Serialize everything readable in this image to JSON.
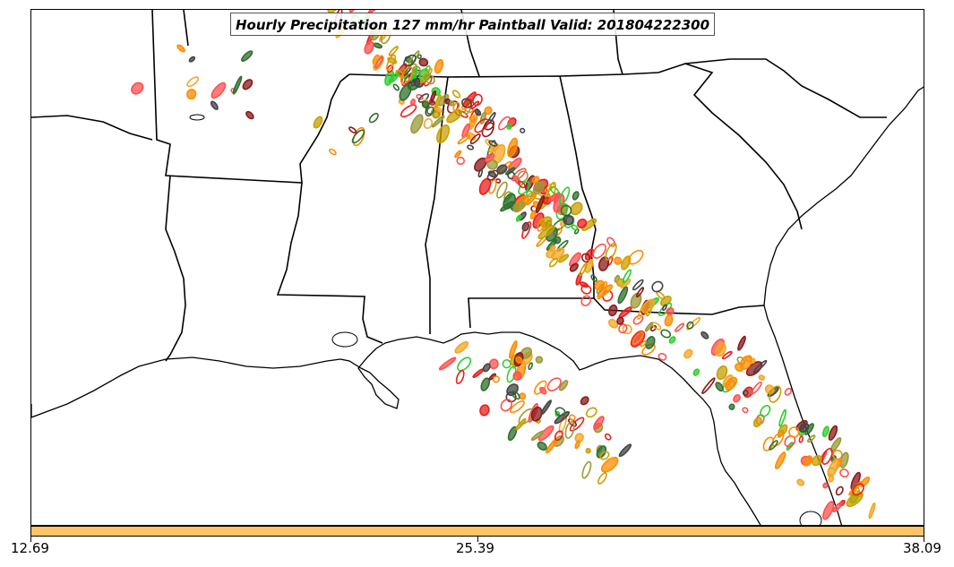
{
  "title": "Hourly Precipitation 127 mm/hr Paintball Valid: 201804222300",
  "colorbar": {
    "color": "#ffc466",
    "ticks": [
      "12.69",
      "25.39",
      "38.09"
    ]
  },
  "map": {
    "region": "Southeastern United States",
    "features": [
      "state-boundaries",
      "coastline",
      "precipitation-contours"
    ],
    "member_colors": [
      "#e8201e",
      "#ff8c00",
      "#2fcf2f",
      "#8b1a1a",
      "#2f6f2f",
      "#9a9a3a",
      "#444444",
      "#f5a623",
      "#ff5050",
      "#c8a000"
    ]
  }
}
